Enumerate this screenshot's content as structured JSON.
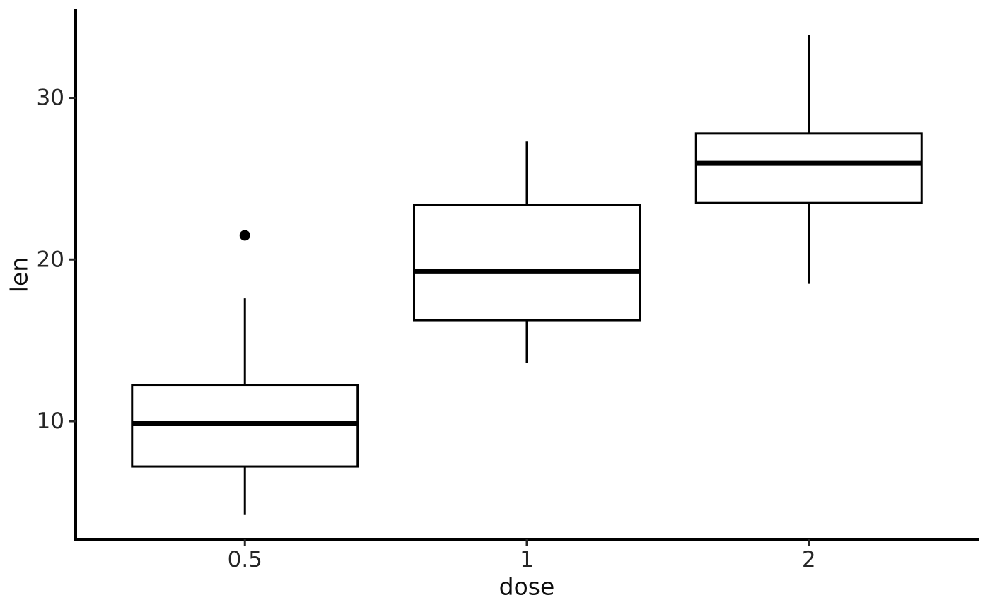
{
  "chart_data": {
    "type": "boxplot",
    "title": "",
    "xlabel": "dose",
    "ylabel": "len",
    "categories": [
      "0.5",
      "1",
      "2"
    ],
    "y_ticks": [
      10,
      20,
      30
    ],
    "ylim": [
      2.7,
      35.4
    ],
    "grid": false,
    "legend": "none",
    "series": [
      {
        "category": "0.5",
        "whisker_low": 4.2,
        "q1": 7.2,
        "median": 9.85,
        "q3": 12.25,
        "whisker_high": 17.6,
        "outliers": [
          21.5
        ]
      },
      {
        "category": "1",
        "whisker_low": 13.6,
        "q1": 16.25,
        "median": 19.25,
        "q3": 23.4,
        "whisker_high": 27.3,
        "outliers": []
      },
      {
        "category": "2",
        "whisker_low": 18.5,
        "q1": 23.5,
        "median": 25.95,
        "q3": 27.8,
        "whisker_high": 33.9,
        "outliers": []
      }
    ],
    "colors": {
      "stroke": "#000000",
      "box_fill": "#ffffff",
      "tick_text": "#262626",
      "title_text": "#0d0d0d",
      "background": "#ffffff"
    }
  }
}
